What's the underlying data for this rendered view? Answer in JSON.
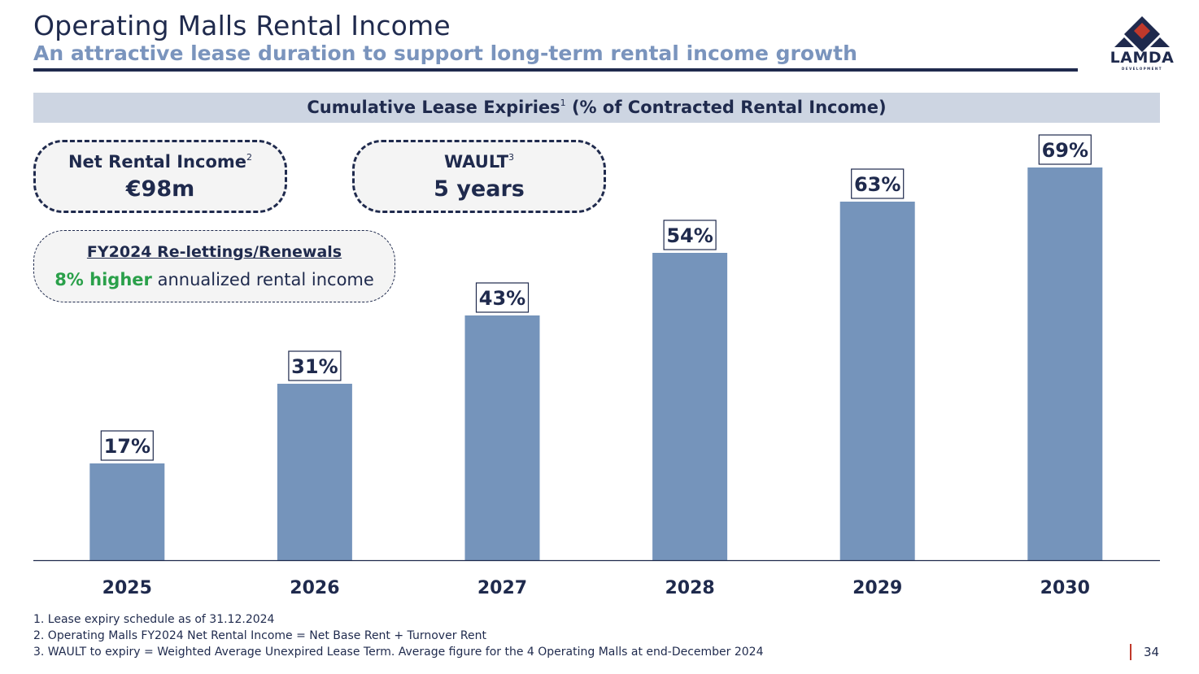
{
  "header": {
    "title": "Operating Malls Rental Income",
    "subtitle": "An attractive lease duration to support long-term rental income growth"
  },
  "logo": {
    "text": "LAMDA",
    "subtext": "DEVELOPMENT",
    "colors": {
      "navy": "#1f2a4d",
      "red": "#c0392b"
    }
  },
  "kpis": {
    "net_rental_income": {
      "label": "Net Rental Income",
      "sup": "2",
      "value": "€98m"
    },
    "wault": {
      "label": "WAULT",
      "sup": "3",
      "value": "5 years"
    }
  },
  "relettings": {
    "title": "FY2024 Re-lettings/Renewals",
    "highlight": "8% higher",
    "rest": "annualized rental income"
  },
  "chart_data": {
    "type": "bar",
    "title": "Cumulative Lease Expiries",
    "title_sup": "1",
    "title_suffix": "(% of Contracted Rental Income)",
    "categories": [
      "2025",
      "2026",
      "2027",
      "2028",
      "2029",
      "2030"
    ],
    "values": [
      17,
      31,
      43,
      54,
      63,
      69
    ],
    "value_labels": [
      "17%",
      "31%",
      "43%",
      "54%",
      "63%",
      "69%"
    ],
    "ylim": [
      0,
      80
    ],
    "grid": false,
    "bar_color": "#7594bb"
  },
  "footnotes": [
    "1. Lease expiry schedule as of 31.12.2024",
    "2. Operating Malls FY2024 Net Rental Income = Net Base Rent + Turnover Rent",
    "3. WAULT to expiry = Weighted Average Unexpired Lease Term. Average figure for the 4 Operating Malls at end-December 2024"
  ],
  "page_number": "34"
}
